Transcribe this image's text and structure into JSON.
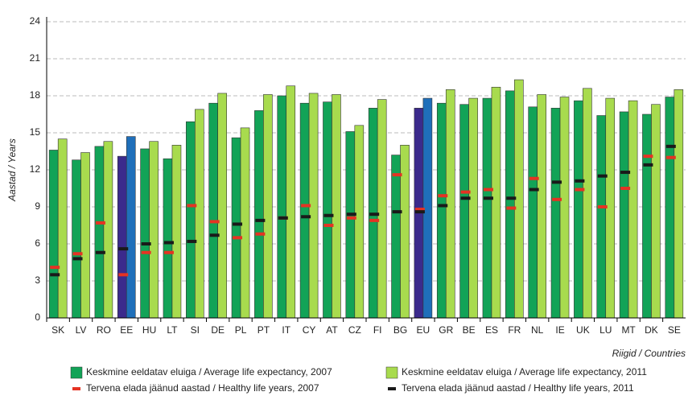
{
  "chart_data": {
    "type": "bar",
    "y_label": "Aastad / Years",
    "x_label": "Riigid / Countries",
    "categories": [
      "SK",
      "LV",
      "RO",
      "EE",
      "HU",
      "LT",
      "SI",
      "DE",
      "PL",
      "PT",
      "IT",
      "CY",
      "AT",
      "CZ",
      "FI",
      "BG",
      "EU",
      "GR",
      "BE",
      "ES",
      "FR",
      "NL",
      "IE",
      "UK",
      "LU",
      "MT",
      "DK",
      "SE"
    ],
    "ylim": [
      0,
      24
    ],
    "yticks": [
      0,
      3,
      6,
      9,
      12,
      15,
      18,
      21,
      24
    ],
    "grid": true,
    "series": [
      {
        "name": "Keskmine eeldatav eluiga / Average life expectancy, 2007",
        "style": "bar",
        "color": "#12a357",
        "colors": [
          "#12a357",
          "#12a357",
          "#12a357",
          "#3b2a8c",
          "#12a357",
          "#12a357",
          "#12a357",
          "#12a357",
          "#12a357",
          "#12a357",
          "#12a357",
          "#12a357",
          "#12a357",
          "#12a357",
          "#12a357",
          "#12a357",
          "#3b2a8c",
          "#12a357",
          "#12a357",
          "#12a357",
          "#12a357",
          "#12a357",
          "#12a357",
          "#12a357",
          "#12a357",
          "#12a357",
          "#12a357",
          "#12a357"
        ],
        "values": [
          13.6,
          12.8,
          13.9,
          13.1,
          13.7,
          12.9,
          15.9,
          17.4,
          14.6,
          16.8,
          18.0,
          17.4,
          17.5,
          15.1,
          17.0,
          13.2,
          17.0,
          17.4,
          17.3,
          17.8,
          18.4,
          17.1,
          17.0,
          17.6,
          16.4,
          16.7,
          16.5,
          17.9
        ]
      },
      {
        "name": "Keskmine eeldatav eluiga / Average life expectancy, 2011",
        "style": "bar",
        "color": "#a8db4e",
        "colors": [
          "#a8db4e",
          "#a8db4e",
          "#a8db4e",
          "#1f6fba",
          "#a8db4e",
          "#a8db4e",
          "#a8db4e",
          "#a8db4e",
          "#a8db4e",
          "#a8db4e",
          "#a8db4e",
          "#a8db4e",
          "#a8db4e",
          "#a8db4e",
          "#a8db4e",
          "#a8db4e",
          "#1f6fba",
          "#a8db4e",
          "#a8db4e",
          "#a8db4e",
          "#a8db4e",
          "#a8db4e",
          "#a8db4e",
          "#a8db4e",
          "#a8db4e",
          "#a8db4e",
          "#a8db4e",
          "#a8db4e"
        ],
        "values": [
          14.5,
          13.4,
          14.3,
          14.7,
          14.3,
          14.0,
          16.9,
          18.2,
          15.4,
          18.1,
          18.8,
          18.2,
          18.1,
          15.6,
          17.7,
          14.0,
          17.8,
          18.5,
          17.8,
          18.7,
          19.3,
          18.1,
          17.9,
          18.6,
          17.8,
          17.6,
          17.3,
          18.5
        ]
      },
      {
        "name": "Tervena elada jäänud aastad / Healthy life years, 2007",
        "style": "dash",
        "color": "#e53323",
        "values": [
          4.1,
          5.2,
          7.7,
          3.5,
          5.3,
          5.3,
          9.1,
          7.8,
          6.5,
          6.8,
          8.1,
          9.1,
          7.5,
          8.1,
          7.9,
          11.6,
          8.8,
          9.9,
          10.2,
          10.4,
          8.9,
          11.3,
          9.6,
          10.4,
          9.0,
          10.5,
          13.1,
          13.0
        ]
      },
      {
        "name": "Tervena elada jäänud aastad / Healthy life years, 2011",
        "style": "dash",
        "color": "#1a1a1a",
        "values": [
          3.5,
          4.8,
          5.3,
          5.6,
          6.0,
          6.1,
          6.2,
          6.7,
          7.6,
          7.9,
          8.1,
          8.2,
          8.3,
          8.4,
          8.4,
          8.6,
          8.6,
          9.1,
          9.7,
          9.7,
          9.7,
          10.4,
          11.0,
          11.1,
          11.5,
          11.8,
          12.4,
          13.9
        ]
      }
    ]
  }
}
